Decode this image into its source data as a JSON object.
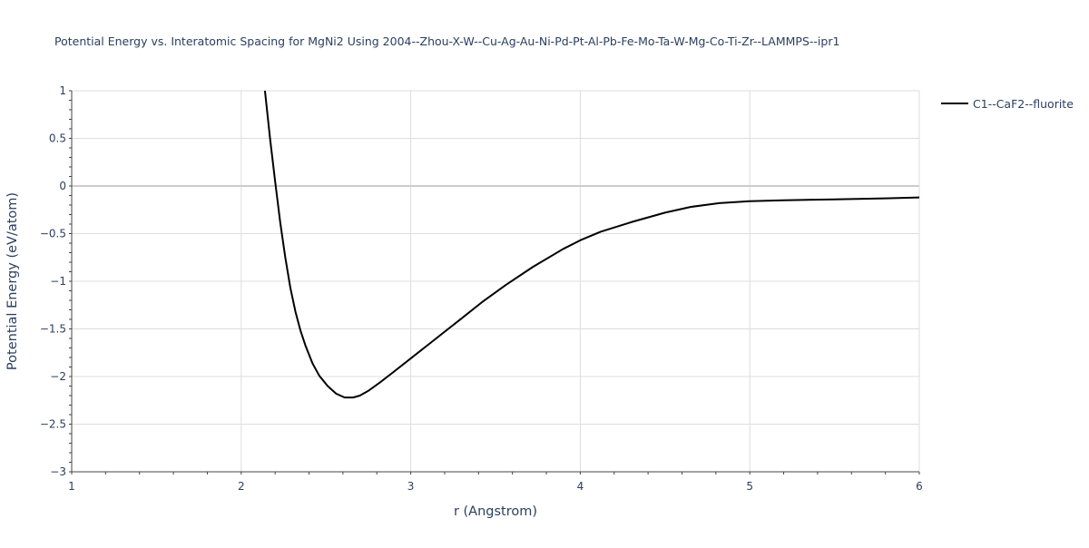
{
  "chart_data": {
    "type": "line",
    "title": "Potential Energy vs. Interatomic Spacing for MgNi2 Using 2004--Zhou-X-W--Cu-Ag-Au-Ni-Pd-Pt-Al-Pb-Fe-Mo-Ta-W-Mg-Co-Ti-Zr--LAMMPS--ipr1",
    "xlabel": "r (Angstrom)",
    "ylabel": "Potential Energy (eV/atom)",
    "xlim": [
      1,
      6
    ],
    "ylim": [
      -3,
      1
    ],
    "x_ticks": [
      1,
      2,
      3,
      4,
      5,
      6
    ],
    "x_tick_labels": [
      "1",
      "2",
      "3",
      "4",
      "5",
      "6"
    ],
    "y_ticks": [
      1,
      0.5,
      0,
      -0.5,
      -1,
      -1.5,
      -2,
      -2.5,
      -3
    ],
    "y_tick_labels": [
      "1",
      "0.5",
      "0",
      "−0.5",
      "−1",
      "−1.5",
      "−2",
      "−2.5",
      "−3"
    ],
    "grid": true,
    "legend_position": "top-right",
    "colors": {
      "series": "#000000",
      "grid": "#dddddd",
      "zeroline": "#cccccc",
      "text": "#444444"
    },
    "series": [
      {
        "name": "C1--CaF2--fluorite",
        "x": [
          2.14,
          2.17,
          2.2,
          2.23,
          2.26,
          2.29,
          2.32,
          2.35,
          2.38,
          2.42,
          2.46,
          2.51,
          2.56,
          2.61,
          2.66,
          2.7,
          2.75,
          2.82,
          2.9,
          3.0,
          3.1,
          3.2,
          3.3,
          3.42,
          3.56,
          3.72,
          3.9,
          4.0,
          4.12,
          4.3,
          4.5,
          4.65,
          4.82,
          5.0,
          5.2,
          5.5,
          5.8,
          6.0
        ],
        "y": [
          1.0,
          0.5,
          0.05,
          -0.38,
          -0.75,
          -1.07,
          -1.32,
          -1.52,
          -1.68,
          -1.86,
          -1.99,
          -2.1,
          -2.18,
          -2.22,
          -2.22,
          -2.2,
          -2.15,
          -2.06,
          -1.95,
          -1.81,
          -1.67,
          -1.53,
          -1.39,
          -1.22,
          -1.04,
          -0.85,
          -0.66,
          -0.57,
          -0.48,
          -0.38,
          -0.28,
          -0.22,
          -0.18,
          -0.16,
          -0.15,
          -0.14,
          -0.13,
          -0.12
        ]
      }
    ]
  }
}
